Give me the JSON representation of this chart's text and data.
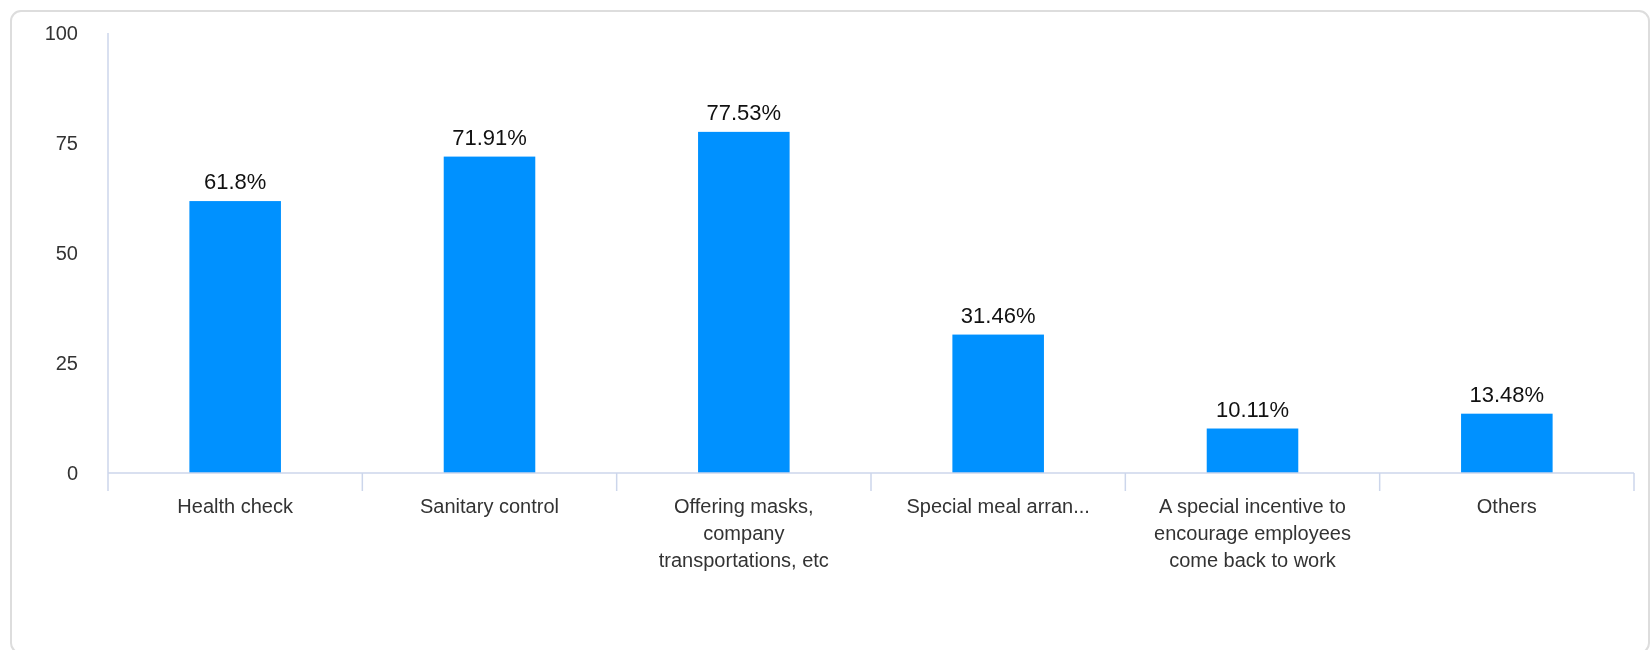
{
  "chart_data": {
    "type": "bar",
    "categories": [
      "Health check",
      "Sanitary control",
      "Offering masks, company transportations, etc",
      "Special meal arran...",
      "A special incentive to encourage employees come back to work",
      "Others"
    ],
    "values": [
      61.8,
      71.91,
      77.53,
      31.46,
      10.11,
      13.48
    ],
    "value_labels": [
      "61.8%",
      "71.91%",
      "77.53%",
      "31.46%",
      "10.11%",
      "13.48%"
    ],
    "color": "#0091ff",
    "ylim": [
      0,
      100
    ],
    "yticks": [
      0,
      25,
      50,
      75,
      100
    ],
    "grid": false
  }
}
